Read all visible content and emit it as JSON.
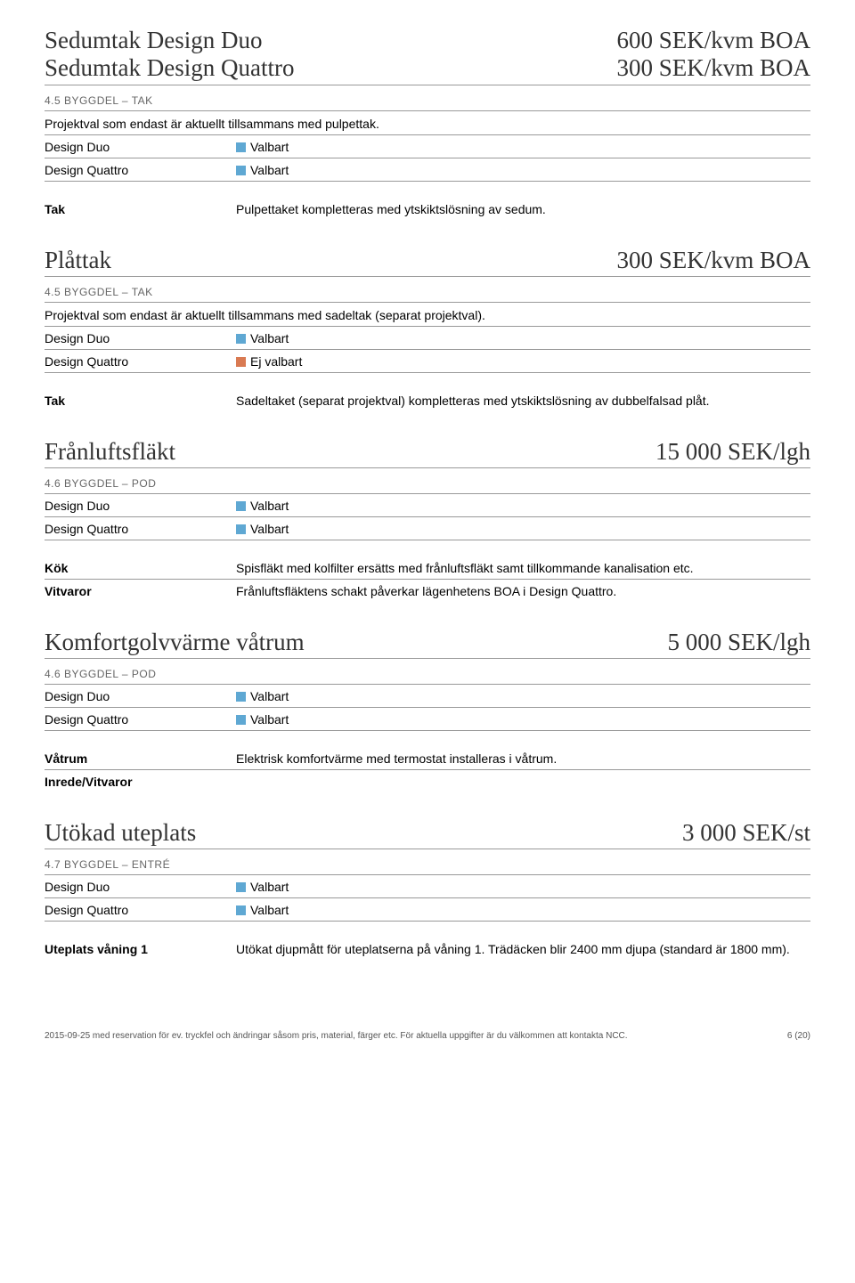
{
  "colors": {
    "valbart": "#5fa8d3",
    "ej_valbart": "#d97a52"
  },
  "top": {
    "left1": "Sedumtak Design Duo",
    "right1": "600 SEK/kvm BOA",
    "left2": "Sedumtak Design Quattro",
    "right2": "300 SEK/kvm BOA"
  },
  "sec1": {
    "code": "4.5 BYGGDEL – TAK",
    "note": "Projektval som endast är aktuellt tillsammans med pulpettak.",
    "rows": [
      {
        "k": "Design Duo",
        "swatch": "valbart",
        "v": "Valbart"
      },
      {
        "k": "Design Quattro",
        "swatch": "valbart",
        "v": "Valbart"
      }
    ],
    "detail": [
      {
        "k": "Tak",
        "v": "Pulpettaket kompletteras med ytskiktslösning av sedum."
      }
    ]
  },
  "sec2": {
    "title": "Plåttak",
    "price": "300 SEK/kvm BOA",
    "code": "4.5 BYGGDEL – TAK",
    "note": "Projektval som endast är aktuellt tillsammans med sadeltak (separat projektval).",
    "rows": [
      {
        "k": "Design Duo",
        "swatch": "valbart",
        "v": "Valbart"
      },
      {
        "k": "Design Quattro",
        "swatch": "ej_valbart",
        "v": "Ej valbart"
      }
    ],
    "detail": [
      {
        "k": "Tak",
        "v": "Sadeltaket (separat projektval) kompletteras med ytskiktslösning av dubbelfalsad plåt."
      }
    ]
  },
  "sec3": {
    "title": "Frånluftsfläkt",
    "price": "15 000 SEK/lgh",
    "code": "4.6 BYGGDEL – POD",
    "rows": [
      {
        "k": "Design Duo",
        "swatch": "valbart",
        "v": "Valbart"
      },
      {
        "k": "Design Quattro",
        "swatch": "valbart",
        "v": "Valbart"
      }
    ],
    "detail": [
      {
        "k": "Kök",
        "v": "Spisfläkt med kolfilter ersätts med frånluftsfläkt samt tillkommande kanalisation etc."
      },
      {
        "k": "Vitvaror",
        "v": "Frånluftsfläktens schakt påverkar lägenhetens BOA i Design Quattro."
      }
    ]
  },
  "sec4": {
    "title": "Komfortgolvvärme  våtrum",
    "price": "5 000 SEK/lgh",
    "code": "4.6 BYGGDEL – POD",
    "rows": [
      {
        "k": "Design Duo",
        "swatch": "valbart",
        "v": "Valbart"
      },
      {
        "k": "Design Quattro",
        "swatch": "valbart",
        "v": "Valbart"
      }
    ],
    "detail": [
      {
        "k": "Våtrum",
        "v": "Elektrisk komfortvärme med termostat installeras i våtrum."
      },
      {
        "k": "Inrede/Vitvaror",
        "v": ""
      }
    ]
  },
  "sec5": {
    "title": "Utökad uteplats",
    "price": "3 000 SEK/st",
    "code": "4.7 BYGGDEL – ENTRÉ",
    "rows": [
      {
        "k": "Design Duo",
        "swatch": "valbart",
        "v": "Valbart"
      },
      {
        "k": "Design Quattro",
        "swatch": "valbart",
        "v": "Valbart"
      }
    ],
    "detail": [
      {
        "k": "Uteplats våning 1",
        "v": "Utökat djupmått för uteplatserna på våning 1. Trädäcken blir 2400 mm djupa (standard är 1800 mm)."
      }
    ]
  },
  "footer": {
    "left": "2015-09-25 med reservation för ev. tryckfel och ändringar såsom pris, material, färger etc. För aktuella uppgifter är du välkommen att kontakta NCC.",
    "right": "6 (20)"
  }
}
